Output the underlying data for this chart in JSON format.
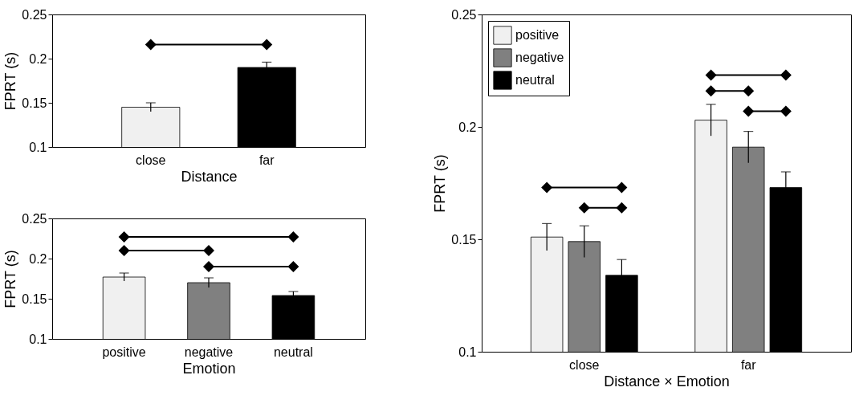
{
  "chart_data": [
    {
      "type": "bar",
      "categories": [
        "close",
        "far"
      ],
      "values": [
        0.145,
        0.19
      ],
      "errors": [
        0.005,
        0.006
      ],
      "colors": [
        "#f0f0f0",
        "#000000"
      ],
      "xlabel": "Distance",
      "ylabel": "FPRT (s)",
      "ylim": [
        0.1,
        0.25
      ],
      "yticks": [
        0.1,
        0.15,
        0.2,
        0.25
      ],
      "grid": false,
      "legend": false
    },
    {
      "type": "bar",
      "categories": [
        "positive",
        "negative",
        "neutral"
      ],
      "values": [
        0.177,
        0.17,
        0.154
      ],
      "errors": [
        0.005,
        0.006,
        0.005
      ],
      "colors": [
        "#f0f0f0",
        "#808080",
        "#000000"
      ],
      "xlabel": "Emotion",
      "ylabel": "FPRT (s)",
      "ylim": [
        0.1,
        0.25
      ],
      "yticks": [
        0.1,
        0.15,
        0.2,
        0.25
      ],
      "grid": false,
      "legend": false
    },
    {
      "type": "bar",
      "categories": [
        "close",
        "far"
      ],
      "xlabel": "Distance × Emotion",
      "ylabel": "FPRT (s)",
      "ylim": [
        0.1,
        0.25
      ],
      "yticks": [
        0.1,
        0.15,
        0.2,
        0.25
      ],
      "grid": false,
      "legend": "top left",
      "series": [
        {
          "name": "positive",
          "color": "#f0f0f0",
          "values": [
            0.151,
            0.203
          ],
          "errors": [
            0.006,
            0.007
          ]
        },
        {
          "name": "negative",
          "color": "#808080",
          "values": [
            0.149,
            0.191
          ],
          "errors": [
            0.007,
            0.007
          ]
        },
        {
          "name": "neutral",
          "color": "#000000",
          "values": [
            0.134,
            0.173
          ],
          "errors": [
            0.007,
            0.007
          ]
        }
      ]
    }
  ]
}
